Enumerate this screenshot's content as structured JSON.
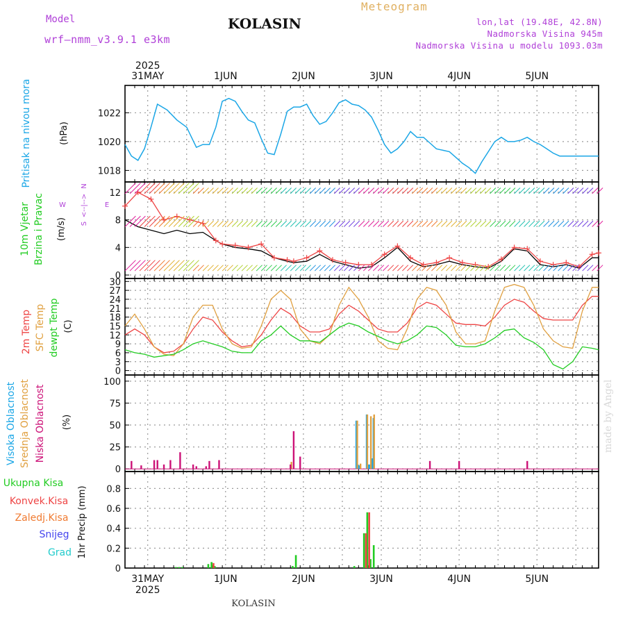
{
  "header": {
    "model_label": "Model",
    "model_name": "wrf—nmm_v3.9.1  e3km",
    "station": "KOLASIN",
    "meteogram": "Meteogram",
    "lonlat": "lon,lat (19.48E, 42.8N)",
    "elevation": "Nadmorska Visina 945m",
    "model_elevation": "Nadmorska Visina u modelu 1093.03m",
    "footer_station": "KOLASIN",
    "watermark": "made by Angel"
  },
  "colors": {
    "pressure": "#1aa6e6",
    "temp2m": "#ee4444",
    "sfc": "#e0a040",
    "dewpt": "#22cc22",
    "high_cloud": "#1aa6e6",
    "mid_cloud": "#e0a040",
    "low_cloud": "#cc1177",
    "grid": "#888888"
  },
  "time_axis": {
    "start_hours_before_first_label": 7,
    "day_labels": [
      "31MAY",
      "1JUN",
      "2JUN",
      "3JUN",
      "4JUN",
      "5JUN"
    ],
    "year": "2025",
    "total_hours": 146
  },
  "chart_data": [
    {
      "type": "line",
      "panel": "pressure",
      "title": "Pritisak na nivou mora",
      "ylabel": "(hPa)",
      "ylim": [
        1017.2,
        1023.9
      ],
      "yticks": [
        "1018",
        "1020",
        "1022"
      ],
      "ytick_values": [
        1018,
        1020,
        1022
      ],
      "series": [
        {
          "name": "Pritisak na nivou mora",
          "x": [
            0,
            2,
            4,
            6,
            8,
            10,
            13,
            16,
            19,
            22,
            24,
            26,
            28,
            30,
            32,
            34,
            36,
            38,
            40,
            42,
            44,
            46,
            48,
            50,
            52,
            54,
            56,
            58,
            60,
            62,
            64,
            66,
            68,
            70,
            72,
            74,
            76,
            78,
            80,
            82,
            84,
            86,
            88,
            90,
            92,
            94,
            96,
            98,
            100,
            102,
            104,
            106,
            108,
            110,
            112,
            114,
            116,
            118,
            120,
            122,
            124,
            126,
            128,
            130,
            132,
            134,
            136,
            138,
            140,
            142,
            144,
            146
          ],
          "y": [
            1019.8,
            1019.0,
            1018.7,
            1019.5,
            1021.0,
            1022.6,
            1022.2,
            1021.5,
            1021.0,
            1019.6,
            1019.8,
            1019.8,
            1021.0,
            1022.8,
            1023.0,
            1022.8,
            1022.1,
            1021.5,
            1021.3,
            1020.2,
            1019.2,
            1019.1,
            1020.5,
            1022.1,
            1022.4,
            1022.4,
            1022.6,
            1021.8,
            1021.2,
            1021.4,
            1022.0,
            1022.7,
            1022.9,
            1022.6,
            1022.5,
            1022.2,
            1021.7,
            1020.8,
            1019.8,
            1019.2,
            1019.5,
            1020.0,
            1020.7,
            1020.3,
            1020.3,
            1019.9,
            1019.5,
            1019.4,
            1019.3,
            1018.9,
            1018.5,
            1018.2,
            1017.8,
            1018.6,
            1019.3,
            1020.0,
            1020.3,
            1020.0,
            1020.0,
            1020.1,
            1020.3,
            1020.0,
            1019.8,
            1019.5,
            1019.2,
            1019.0,
            1019.0,
            1019.0,
            1019.0,
            1019.0,
            1019.0,
            1019.0
          ]
        }
      ]
    },
    {
      "type": "line",
      "panel": "wind",
      "title": "10m Vjetar Brzina i Pravac",
      "ylabel": "(m/s)",
      "direction_legend": "N, W <--|--> E, S",
      "ylim": [
        -0.5,
        13.5
      ],
      "yticks": [
        "0",
        "4",
        "8",
        "12"
      ],
      "ytick_values": [
        0,
        4,
        8,
        12
      ],
      "series": [
        {
          "name": "Wind speed",
          "x": [
            0,
            4,
            8,
            12,
            16,
            20,
            24,
            28,
            30,
            34,
            38,
            42,
            46,
            50,
            52,
            56,
            60,
            64,
            68,
            72,
            76,
            80,
            84,
            88,
            92,
            96,
            100,
            104,
            108,
            112,
            116,
            120,
            124,
            128,
            132,
            136,
            140,
            144,
            146
          ],
          "y": [
            8,
            7,
            6.5,
            6,
            6.5,
            6,
            6.2,
            5,
            4.5,
            4,
            3.8,
            3.5,
            2.5,
            2,
            1.8,
            2,
            3,
            2,
            1.5,
            1,
            1.2,
            2.5,
            4,
            2,
            1.2,
            1.5,
            2,
            1.5,
            1.2,
            1,
            2,
            3.8,
            3.5,
            1.5,
            1.2,
            1.5,
            1,
            2.5,
            2.5
          ]
        },
        {
          "name": "Wind gust",
          "x": [
            0,
            4,
            8,
            12,
            16,
            20,
            24,
            28,
            30,
            34,
            38,
            42,
            46,
            50,
            52,
            56,
            60,
            64,
            68,
            72,
            76,
            80,
            84,
            88,
            92,
            96,
            100,
            104,
            108,
            112,
            116,
            120,
            124,
            128,
            132,
            136,
            140,
            144,
            146
          ],
          "y": [
            10,
            12,
            11,
            8,
            8.5,
            8,
            7.5,
            5,
            4.5,
            4.3,
            4.0,
            4.5,
            2.5,
            2.2,
            2,
            2.5,
            3.5,
            2.2,
            1.8,
            1.5,
            1.5,
            3,
            4.2,
            2.5,
            1.5,
            1.8,
            2.5,
            1.8,
            1.5,
            1.2,
            2.3,
            4,
            3.8,
            2,
            1.5,
            1.8,
            1.2,
            3,
            3.2
          ]
        }
      ]
    },
    {
      "type": "line",
      "panel": "temperature",
      "title": "2m Temp / SFC Temp / dewpt Temp",
      "ylabel": "(C)",
      "ylim": [
        -1.5,
        31
      ],
      "yticks": [
        "0",
        "3",
        "6",
        "9",
        "12",
        "15",
        "18",
        "21",
        "24",
        "27",
        "30"
      ],
      "ytick_values": [
        0,
        3,
        6,
        9,
        12,
        15,
        18,
        21,
        24,
        27,
        30
      ],
      "series": [
        {
          "name": "2m Temp",
          "x": [
            0,
            3,
            6,
            9,
            12,
            15,
            18,
            21,
            24,
            27,
            30,
            33,
            36,
            39,
            42,
            45,
            48,
            51,
            54,
            57,
            60,
            63,
            66,
            69,
            72,
            75,
            78,
            81,
            84,
            87,
            90,
            93,
            96,
            99,
            102,
            105,
            108,
            111,
            114,
            117,
            120,
            123,
            126,
            129,
            132,
            135,
            138,
            141,
            144,
            146
          ],
          "y": [
            12,
            14,
            12,
            8,
            6,
            6.5,
            9,
            14,
            18,
            17,
            13,
            10,
            8,
            8.5,
            12,
            17,
            21,
            19,
            15,
            13,
            13,
            14,
            19,
            22,
            20,
            17,
            14,
            13,
            13,
            16,
            21,
            23,
            22,
            19,
            16,
            15.5,
            15.5,
            15,
            18,
            22,
            24,
            23,
            20,
            17.5,
            17,
            17,
            17,
            22,
            25,
            25
          ]
        },
        {
          "name": "SFC Temp",
          "x": [
            0,
            3,
            6,
            9,
            12,
            15,
            18,
            21,
            24,
            27,
            30,
            33,
            36,
            39,
            42,
            45,
            48,
            51,
            54,
            57,
            60,
            63,
            66,
            69,
            72,
            75,
            78,
            81,
            84,
            87,
            90,
            93,
            96,
            99,
            102,
            105,
            108,
            111,
            114,
            117,
            120,
            123,
            126,
            129,
            132,
            135,
            138,
            141,
            144,
            146
          ],
          "y": [
            15,
            19,
            14,
            8,
            5.5,
            5,
            9,
            18,
            22,
            22,
            14,
            9,
            7.5,
            8,
            15,
            24,
            27,
            24,
            14,
            10,
            9,
            12,
            22,
            28,
            24,
            18,
            10,
            7.5,
            7,
            14,
            24,
            28,
            27,
            22,
            13,
            9,
            9,
            10,
            20,
            28,
            29,
            28,
            22,
            14,
            10,
            8,
            7.5,
            20,
            28,
            28
          ]
        },
        {
          "name": "dewpt Temp",
          "x": [
            0,
            3,
            6,
            9,
            12,
            15,
            18,
            21,
            24,
            27,
            30,
            33,
            36,
            39,
            42,
            45,
            48,
            51,
            54,
            57,
            60,
            63,
            66,
            69,
            72,
            75,
            78,
            81,
            84,
            87,
            90,
            93,
            96,
            99,
            102,
            105,
            108,
            111,
            114,
            117,
            120,
            123,
            126,
            129,
            132,
            135,
            138,
            141,
            144,
            146
          ],
          "y": [
            7,
            6,
            5.5,
            4.5,
            5,
            5.5,
            7,
            9,
            10,
            9,
            8,
            6.5,
            6,
            6,
            10,
            12,
            15,
            12,
            10,
            10,
            9.5,
            12,
            14.5,
            16,
            15,
            13,
            11.5,
            10,
            9,
            10,
            12,
            15,
            14.5,
            12,
            8.5,
            8,
            8,
            9,
            11,
            13.5,
            14,
            11,
            9.5,
            7,
            2,
            0.5,
            3,
            8,
            7.5,
            7
          ]
        }
      ]
    },
    {
      "type": "bar",
      "panel": "clouds",
      "title": "Visoka Oblacnost / Srednja Oblacnost / Niska Oblacnost",
      "ylabel": "(%)",
      "ylim": [
        -3,
        107
      ],
      "yticks": [
        "0",
        "25",
        "50",
        "75",
        "100"
      ],
      "ytick_values": [
        0,
        25,
        50,
        75,
        100
      ],
      "series": [
        {
          "name": "Visoka Oblacnost",
          "x": [
            71.3,
            71.8,
            72.3,
            74.5,
            74.9,
            75.3,
            76.2,
            76.6
          ],
          "values": [
            55,
            5,
            4,
            62,
            5,
            5,
            12,
            58
          ]
        },
        {
          "name": "Srednja Oblacnost",
          "x": [
            51.3,
            71.6,
            72.6,
            74.7,
            75.8,
            76.8
          ],
          "values": [
            8,
            55,
            6,
            62,
            60,
            62
          ]
        },
        {
          "name": "Niska Oblacnost",
          "x": [
            2,
            5,
            9,
            10,
            12,
            14,
            17,
            21,
            22,
            25,
            26,
            29,
            51,
            52,
            54,
            94,
            103,
            124
          ],
          "values": [
            9,
            4,
            10,
            10,
            5,
            10,
            19,
            5,
            3,
            3,
            9,
            10,
            5,
            43,
            14,
            9,
            9,
            9
          ]
        }
      ]
    },
    {
      "type": "bar",
      "panel": "precip",
      "title": "1hr Precip",
      "ylabel": "1hr Precip (mm)",
      "ylim": [
        0,
        0.97
      ],
      "yticks": [
        "0",
        "0.2",
        "0.4",
        "0.6",
        "0.8"
      ],
      "ytick_values": [
        0,
        0.2,
        0.4,
        0.6,
        0.8
      ],
      "legend": [
        "Ukupna Kisa",
        "Konvek.Kisa",
        "Zaledj.Kisa",
        "Snijeg",
        "Grad"
      ],
      "legend_colors": [
        "#22cc22",
        "#ee4444",
        "#f07a30",
        "#4444ee",
        "#22cccc"
      ],
      "series": [
        {
          "name": "Ukupna Kisa",
          "x": [
            16,
            17,
            18,
            26,
            27,
            28,
            52,
            53,
            71,
            74,
            75,
            76,
            77
          ],
          "values": [
            0.01,
            0.01,
            0.01,
            0.04,
            0.06,
            0.02,
            0.02,
            0.13,
            0.02,
            0.35,
            0.56,
            0.09,
            0.23
          ]
        },
        {
          "name": "Konvek.Kisa",
          "x": [
            27,
            74,
            75
          ],
          "values": [
            0.05,
            0.35,
            0.56
          ]
        }
      ]
    }
  ],
  "legends": {
    "pressure": [
      "Pritisak na nivou mora"
    ],
    "pressure_unit": "(hPa)",
    "wind": [
      "10m Vjetar",
      "Brzina i Pravac"
    ],
    "wind_unit": "(m/s)",
    "temp": [
      "2m Temp",
      "SFC Temp",
      "dewpt Temp"
    ],
    "temp_unit": "(C)",
    "cloud": [
      "Visoka Oblacnost",
      "Srednja Oblacnost",
      "Niska Oblacnost"
    ],
    "cloud_unit": "(%)"
  }
}
